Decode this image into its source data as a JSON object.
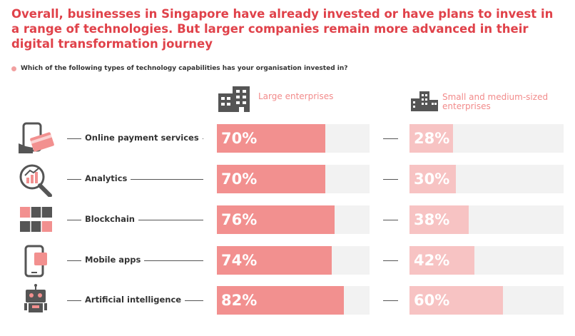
{
  "title": "Overall, businesses in Singapore have already invested or have plans to invest in a range of technologies. But larger companies remain more advanced in their digital transformation journey",
  "question": "Which of the following types of technology capabilities has your organisation invested in?",
  "colors": {
    "accent": "#e0424a",
    "large_bar": "#f2908f",
    "sme_bar": "#f7c3c3",
    "track": "#f2f2f2"
  },
  "chart_data": {
    "type": "bar",
    "categories": [
      "Online payment services",
      "Analytics",
      "Blockchain",
      "Mobile apps",
      "Artificial intelligence"
    ],
    "series": [
      {
        "name": "Large enterprises",
        "values": [
          70,
          70,
          76,
          74,
          82
        ],
        "labels": [
          "70%",
          "70%",
          "76%",
          "74%",
          "82%"
        ]
      },
      {
        "name": "Small and medium-sized enterprises",
        "values": [
          28,
          30,
          38,
          42,
          60
        ],
        "labels": [
          "28%",
          "30%",
          "38%",
          "42%",
          "60%"
        ]
      }
    ],
    "icons": [
      "payment-icon",
      "analytics-icon",
      "blockchain-icon",
      "mobile-icon",
      "robot-icon"
    ],
    "xlim": [
      0,
      100
    ]
  }
}
